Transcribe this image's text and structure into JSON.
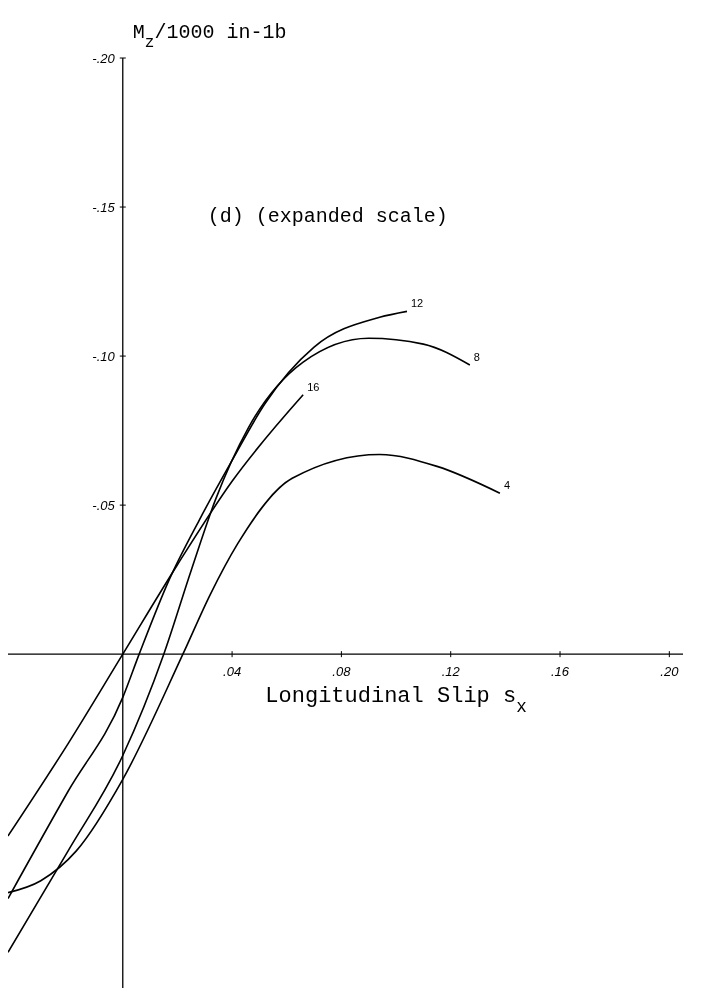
{
  "chart_data": {
    "type": "line",
    "title": "(d) (expanded scale)",
    "xlabel": "Longitudinal Slip s$_{x}$",
    "ylabel": "M$_{z}$/1000 in-1b",
    "xlim": [
      -0.042,
      0.205
    ],
    "ylim": [
      0.112,
      -0.2
    ],
    "xticks": [
      {
        "value": 0.04,
        "label": ".04"
      },
      {
        "value": 0.08,
        "label": ".08"
      },
      {
        "value": 0.12,
        "label": ".12"
      },
      {
        "value": 0.16,
        "label": ".16"
      },
      {
        "value": 0.2,
        "label": ".20"
      }
    ],
    "yticks": [
      {
        "value": -0.05,
        "label": "-.05"
      },
      {
        "value": -0.1,
        "label": "-.10"
      },
      {
        "value": -0.15,
        "label": "-.15"
      },
      {
        "value": -0.2,
        "label": "-.20"
      }
    ],
    "grid": false,
    "marker": "none",
    "line_style": "solid",
    "series": [
      {
        "name": "12",
        "color": "#000000",
        "x": [
          -0.042,
          -0.02,
          0,
          0.006,
          0.017,
          0.028,
          0.04,
          0.052,
          0.07,
          0.094,
          0.104
        ],
        "values": [
          0.082,
          0.046,
          0.0145,
          0,
          -0.025,
          -0.045,
          -0.065,
          -0.084,
          -0.103,
          -0.113,
          -0.115
        ]
      },
      {
        "name": "8",
        "color": "#000000",
        "x": [
          -0.042,
          -0.02,
          0,
          0.015,
          0.025,
          0.034,
          0.046,
          0.066,
          0.09,
          0.11,
          0.127
        ],
        "values": [
          0.1,
          0.066,
          0.034,
          0,
          -0.028,
          -0.052,
          -0.076,
          -0.098,
          -0.106,
          -0.104,
          -0.097
        ]
      },
      {
        "name": "16",
        "color": "#000000",
        "x": [
          -0.042,
          -0.02,
          0,
          0.02,
          0.04,
          0.066
        ],
        "values": [
          0.061,
          0.03,
          0,
          -0.03,
          -0.058,
          -0.087
        ]
      },
      {
        "name": "4",
        "color": "#000000",
        "x": [
          -0.042,
          -0.03,
          -0.017,
          0,
          0.022,
          0.032,
          0.042,
          0.062,
          0.094,
          0.115,
          0.138
        ],
        "values": [
          0.08,
          0.076,
          0.066,
          0.042,
          0,
          -0.02,
          -0.037,
          -0.059,
          -0.067,
          -0.063,
          -0.054
        ]
      }
    ]
  }
}
